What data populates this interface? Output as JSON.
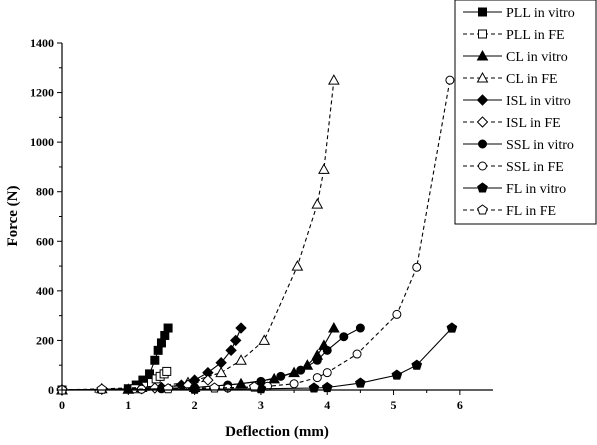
{
  "chart_data": {
    "type": "line",
    "title": "",
    "xlabel": "Deflection (mm)",
    "ylabel": "Force (N)",
    "xlim": [
      0,
      6.5
    ],
    "ylim": [
      0,
      1400
    ],
    "xticks": [
      "0",
      "1",
      "2",
      "3",
      "4",
      "5",
      "6"
    ],
    "yticks": [
      "0",
      "200",
      "400",
      "600",
      "800",
      "1000",
      "1200",
      "1400"
    ],
    "grid": false,
    "legend_position": "top-right",
    "series": [
      {
        "name": "PLL in vitro",
        "marker": "square",
        "filled": true,
        "dashed": false,
        "x": [
          0,
          1.0,
          1.12,
          1.22,
          1.32,
          1.4,
          1.45,
          1.5,
          1.55,
          1.6
        ],
        "y": [
          0,
          5,
          20,
          40,
          65,
          120,
          160,
          190,
          220,
          250
        ]
      },
      {
        "name": "PLL in FE",
        "marker": "square",
        "filled": false,
        "dashed": true,
        "x": [
          0,
          1.1,
          1.25,
          1.35,
          1.42,
          1.48,
          1.54,
          1.58
        ],
        "y": [
          0,
          5,
          15,
          30,
          45,
          55,
          65,
          75
        ]
      },
      {
        "name": "CL in vitro",
        "marker": "triangle",
        "filled": true,
        "dashed": false,
        "x": [
          0,
          1.0,
          2.0,
          2.7,
          3.2,
          3.5,
          3.7,
          3.85,
          3.95,
          4.1
        ],
        "y": [
          0,
          3,
          10,
          25,
          45,
          70,
          100,
          140,
          180,
          250
        ]
      },
      {
        "name": "CL in FE",
        "marker": "triangle",
        "filled": false,
        "dashed": true,
        "x": [
          0,
          0.6,
          1.2,
          1.9,
          2.4,
          2.7,
          3.05,
          3.55,
          3.85,
          3.95,
          4.1
        ],
        "y": [
          0,
          5,
          10,
          30,
          70,
          120,
          200,
          500,
          750,
          890,
          1250
        ]
      },
      {
        "name": "ISL in vitro",
        "marker": "diamond",
        "filled": true,
        "dashed": false,
        "x": [
          0,
          1.2,
          1.5,
          1.8,
          2.0,
          2.2,
          2.4,
          2.55,
          2.62,
          2.7
        ],
        "y": [
          0,
          5,
          10,
          20,
          40,
          70,
          110,
          160,
          200,
          250
        ]
      },
      {
        "name": "ISL in FE",
        "marker": "diamond",
        "filled": false,
        "dashed": true,
        "x": [
          0,
          0.6,
          1.4,
          1.9,
          2.2
        ],
        "y": [
          0,
          3,
          8,
          20,
          40
        ]
      },
      {
        "name": "SSL in vitro",
        "marker": "circle",
        "filled": true,
        "dashed": false,
        "x": [
          0,
          1.5,
          2.0,
          2.5,
          3.0,
          3.3,
          3.6,
          3.85,
          4.0,
          4.25,
          4.5
        ],
        "y": [
          0,
          5,
          10,
          20,
          35,
          55,
          80,
          120,
          160,
          215,
          250
        ]
      },
      {
        "name": "SSL in FE",
        "marker": "circle",
        "filled": false,
        "dashed": true,
        "x": [
          0,
          1.2,
          2.5,
          3.1,
          3.5,
          3.85,
          4.0,
          4.45,
          5.05,
          5.35,
          5.85
        ],
        "y": [
          0,
          3,
          8,
          15,
          25,
          50,
          70,
          145,
          305,
          495,
          1250
        ]
      },
      {
        "name": "FL in vitro",
        "marker": "pentagon",
        "filled": true,
        "dashed": false,
        "x": [
          0,
          2.0,
          3.0,
          3.8,
          4.0,
          4.5,
          5.05,
          5.35,
          5.88
        ],
        "y": [
          0,
          3,
          5,
          8,
          10,
          28,
          60,
          100,
          250
        ]
      },
      {
        "name": "FL in FE",
        "marker": "pentagon",
        "filled": false,
        "dashed": true,
        "x": [
          0,
          0.6,
          1.6,
          2.3,
          2.9
        ],
        "y": [
          0,
          3,
          5,
          8,
          12
        ]
      }
    ]
  }
}
